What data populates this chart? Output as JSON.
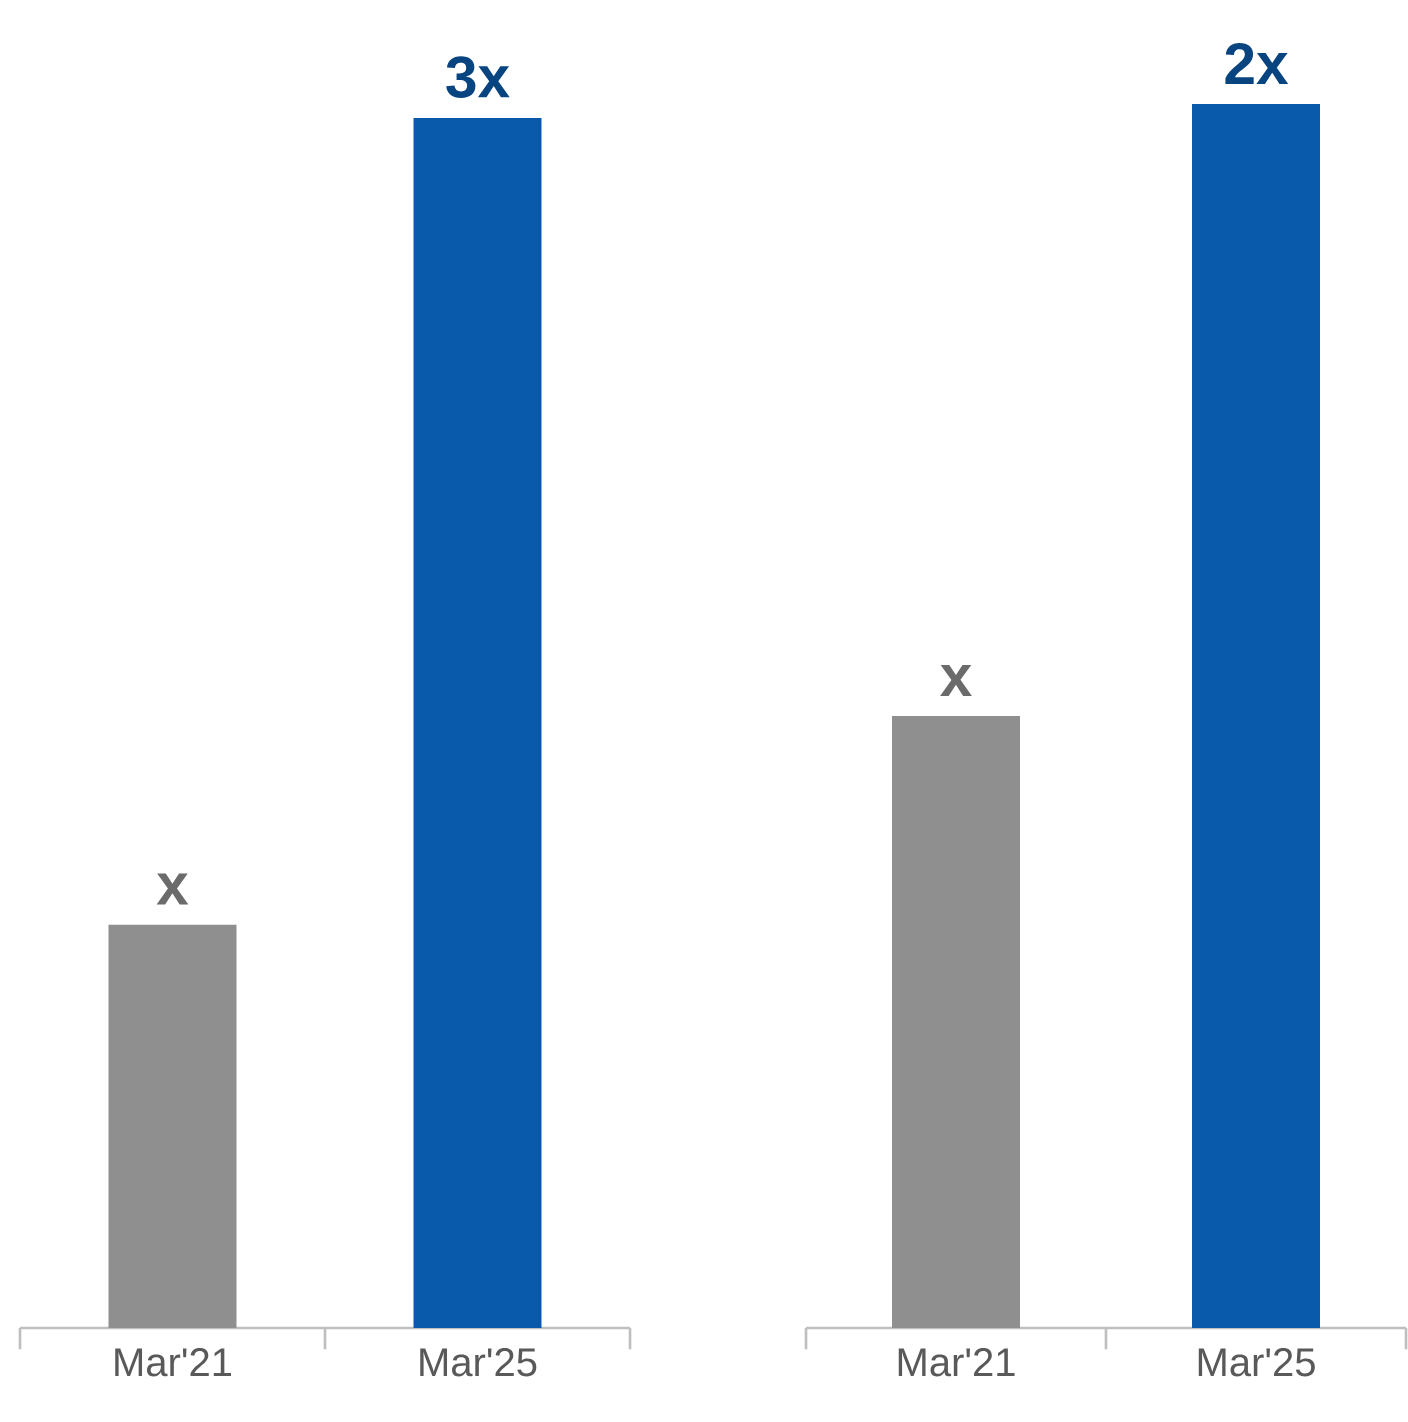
{
  "chart_data": [
    {
      "type": "bar",
      "categories": [
        "Mar'21",
        "Mar'25"
      ],
      "values": [
        1,
        3
      ],
      "colors": [
        "#8f8f8f",
        "#0a5aab"
      ],
      "value_labels": [
        "x",
        "3x"
      ]
    },
    {
      "type": "bar",
      "categories": [
        "Mar'21",
        "Mar'25"
      ],
      "values": [
        1,
        2
      ],
      "colors": [
        "#8f8f8f",
        "#0a5aab"
      ],
      "value_labels": [
        "x",
        "2x"
      ]
    }
  ]
}
